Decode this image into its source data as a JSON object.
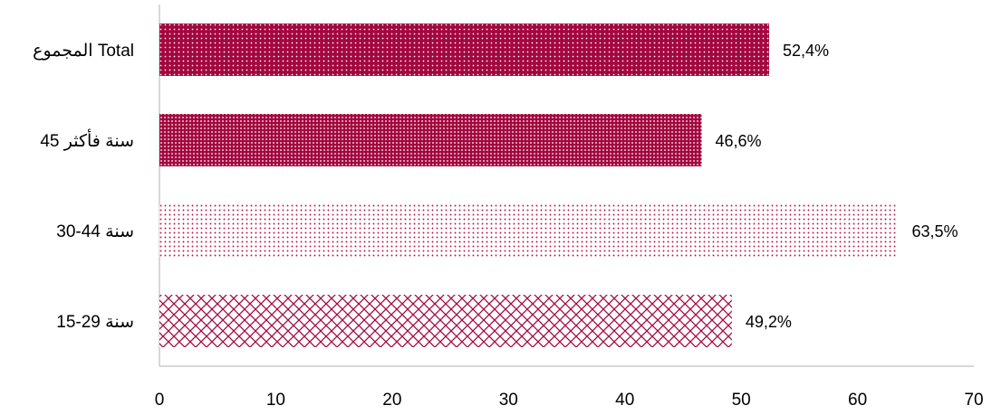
{
  "chart_data": {
    "type": "bar",
    "orientation": "horizontal",
    "categories": [
      "المجموع  Total",
      "45 سنة فأكثر",
      "30-44 سنة",
      "15-29 سنة"
    ],
    "values": [
      52.4,
      46.6,
      63.5,
      49.2
    ],
    "value_labels": [
      "52,4%",
      "46,6%",
      "63,5%",
      "49,2%"
    ],
    "xlim": [
      0,
      70
    ],
    "x_ticks": [
      0,
      10,
      20,
      30,
      40,
      50,
      60,
      70
    ],
    "x_tick_labels": [
      "0",
      "10",
      "20",
      "30",
      "40",
      "50",
      "60",
      "70"
    ],
    "grid": false,
    "legend": "none",
    "title": "",
    "xlabel": "",
    "ylabel": "",
    "bar_patterns": [
      "dense-dots",
      "very-dense-dots",
      "sparse-dots",
      "crosshatch"
    ]
  },
  "colors": {
    "bar": "#a3073f",
    "bar_light": "#c23a68",
    "axis": "#b0b0b0"
  }
}
